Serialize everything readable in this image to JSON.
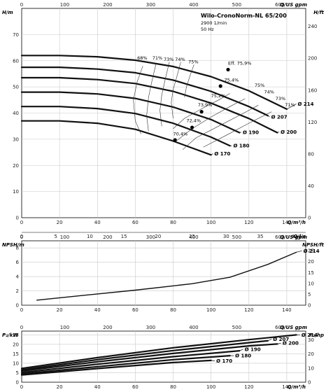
{
  "chart_data": [
    {
      "type": "line",
      "title": "Wilo-CronoNorm-NL 65/200",
      "subtitle": [
        "2900 1/min",
        "50 Hz"
      ],
      "ylabel": "H/m",
      "ylabel_right": "H/ft",
      "xlabel": "Q/m³/h",
      "xlabel_top": "Q/US gpm",
      "xlabel_ls": "Q/l/s",
      "xlim": [
        0,
        150
      ],
      "ylim": [
        0,
        80
      ],
      "y_ticks": [
        0,
        10,
        20,
        30,
        40,
        50,
        60,
        70
      ],
      "yr_ticks": [
        0,
        40,
        80,
        120,
        160,
        200,
        240
      ],
      "x_ticks": [
        0,
        20,
        40,
        60,
        80,
        100,
        120,
        140
      ],
      "top_ticks": [
        0,
        100,
        200,
        300,
        400,
        500,
        600
      ],
      "ls_ticks": [
        0,
        5,
        10,
        15,
        20,
        25,
        30,
        35,
        40
      ],
      "series": [
        {
          "name": "Ø 214",
          "x": [
            0,
            20,
            40,
            60,
            80,
            100,
            120,
            140
          ],
          "y": [
            62,
            62,
            61.5,
            60.2,
            57.8,
            53.9,
            48.5,
            41.5
          ]
        },
        {
          "name": "Ø 207",
          "x": [
            0,
            20,
            40,
            60,
            80,
            100,
            120,
            130
          ],
          "y": [
            57.5,
            57.5,
            56.8,
            55.4,
            52.6,
            48.3,
            42.5,
            39
          ]
        },
        {
          "name": "Ø 200",
          "x": [
            0,
            20,
            40,
            60,
            80,
            100,
            120,
            135
          ],
          "y": [
            53.5,
            53.5,
            52.8,
            51.3,
            48.3,
            43.8,
            37.9,
            32.5
          ]
        },
        {
          "name": "Ø 190",
          "x": [
            0,
            20,
            40,
            60,
            80,
            100,
            115
          ],
          "y": [
            48,
            48,
            47.3,
            45.6,
            42.3,
            37.5,
            32.5
          ]
        },
        {
          "name": "Ø 180",
          "x": [
            0,
            20,
            40,
            60,
            80,
            100,
            110
          ],
          "y": [
            42.5,
            42.5,
            41.7,
            39.8,
            36.1,
            30.8,
            27.5
          ]
        },
        {
          "name": "Ø 170",
          "x": [
            0,
            20,
            40,
            60,
            80,
            100
          ],
          "y": [
            37,
            37,
            36.1,
            33.8,
            29.3,
            24
          ]
        }
      ],
      "series_labels": [
        "Ø 214",
        "Ø 207",
        "Ø 200",
        "Ø 190",
        "Ø 180",
        "Ø 170"
      ],
      "efficiency_labels": [
        "68%",
        "71%",
        "73%",
        "74%",
        "75%",
        "Eff. 75,9%",
        "75%",
        "74%",
        "73%",
        "71%",
        "75,4%",
        "75,2%",
        "73,9%",
        "72,4%",
        "70,4%"
      ],
      "grid": true
    },
    {
      "type": "line",
      "ylabel": "NPSH/m",
      "ylabel_right": "NPSH/ft",
      "xlim": [
        0,
        150
      ],
      "ylim": [
        0,
        9
      ],
      "y_ticks": [
        0,
        2,
        4,
        6,
        8
      ],
      "yr_ticks": [
        0,
        5,
        10,
        15,
        20,
        25
      ],
      "x_ticks": [
        0,
        20,
        40,
        60,
        80,
        100,
        120,
        140
      ],
      "top_ticks": [
        0,
        100,
        200,
        300,
        400,
        500,
        600
      ],
      "series": [
        {
          "name": "Ø 214",
          "x": [
            8,
            30,
            60,
            90,
            110,
            130,
            145
          ],
          "y": [
            0.7,
            1.3,
            2.1,
            3.0,
            3.9,
            5.7,
            7.4
          ]
        }
      ],
      "series_labels": [
        "Ø 214"
      ],
      "grid": true
    },
    {
      "type": "line",
      "ylabel": "P₂/kW",
      "ylabel_right": "P₂/hp",
      "xlabel": "Q/m³/h",
      "xlim": [
        0,
        150
      ],
      "ylim": [
        0,
        27
      ],
      "y_ticks": [
        0,
        5,
        10,
        15,
        20,
        25
      ],
      "yr_ticks": [
        0,
        10,
        20,
        30
      ],
      "x_ticks": [
        0,
        20,
        40,
        60,
        80,
        100,
        120,
        140
      ],
      "top_ticks": [
        0,
        100,
        200,
        300,
        400,
        500,
        600
      ],
      "series": [
        {
          "name": "Ø 214",
          "x": [
            0,
            40,
            80,
            120,
            145
          ],
          "y": [
            7.3,
            13.0,
            18.2,
            22.5,
            25.0
          ]
        },
        {
          "name": "Ø 207",
          "x": [
            0,
            40,
            80,
            120,
            130
          ],
          "y": [
            6.5,
            11.9,
            16.7,
            20.9,
            21.9
          ]
        },
        {
          "name": "Ø 200",
          "x": [
            0,
            40,
            80,
            120,
            135
          ],
          "y": [
            5.9,
            10.8,
            15.2,
            19.2,
            20.2
          ]
        },
        {
          "name": "Ø 190",
          "x": [
            0,
            40,
            80,
            115
          ],
          "y": [
            5.1,
            9.5,
            13.5,
            16.6
          ]
        },
        {
          "name": "Ø 180",
          "x": [
            0,
            40,
            80,
            110
          ],
          "y": [
            4.4,
            8.2,
            11.9,
            14.0
          ]
        },
        {
          "name": "Ø 170",
          "x": [
            0,
            40,
            80,
            100
          ],
          "y": [
            3.8,
            7.2,
            10.4,
            11.5
          ]
        }
      ],
      "series_labels": [
        "Ø 214",
        "Ø 207",
        "Ø 200",
        "Ø 190",
        "Ø 180",
        "Ø 170"
      ],
      "grid": true
    }
  ]
}
